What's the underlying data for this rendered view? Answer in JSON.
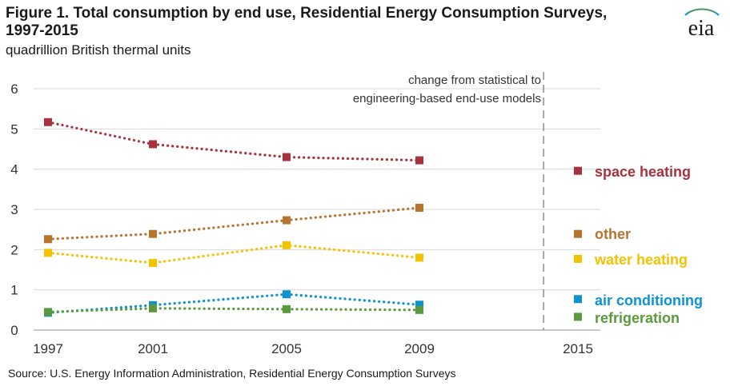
{
  "title": "Figure 1. Total consumption by end use, Residential Energy Consumption Surveys, 1997-2015",
  "subtitle": "quadrillion British thermal units",
  "source": "Source: U.S. Energy Information Administration, Residential Energy Consumption Surveys",
  "logo_text": "eia",
  "chart_data": {
    "type": "line",
    "title": "Figure 1. Total consumption by end use, Residential Energy Consumption Surveys, 1997-2015",
    "ylabel": "quadrillion British thermal units",
    "xlabel": "",
    "x_ticks": [
      "1997",
      "2001",
      "2005",
      "2009",
      "2015"
    ],
    "x": [
      1997,
      2001,
      2005,
      2009
    ],
    "ylim": [
      0,
      6
    ],
    "y_ticks": [
      "0",
      "1",
      "2",
      "3",
      "4",
      "5",
      "6"
    ],
    "grid": true,
    "annotation": {
      "lines": [
        "change from statistical to",
        "engineering-based end-use models"
      ],
      "x": 2013.7
    },
    "series": [
      {
        "name": "space heating",
        "color": "#a8323e",
        "values": [
          5.17,
          4.62,
          4.3,
          4.22
        ],
        "value_2015": 3.96
      },
      {
        "name": "other",
        "color": "#b8732e",
        "values": [
          2.26,
          2.39,
          2.73,
          3.04
        ],
        "value_2015": 2.39
      },
      {
        "name": "water heating",
        "color": "#f5c200",
        "values": [
          1.92,
          1.67,
          2.11,
          1.8
        ],
        "value_2015": 1.77
      },
      {
        "name": "air conditioning",
        "color": "#0d93d2",
        "values": [
          0.43,
          0.62,
          0.89,
          0.63
        ],
        "value_2015": 0.77
      },
      {
        "name": "refrigeration",
        "color": "#5a9a3c",
        "values": [
          0.45,
          0.54,
          0.52,
          0.5
        ],
        "value_2015": 0.33
      }
    ]
  }
}
